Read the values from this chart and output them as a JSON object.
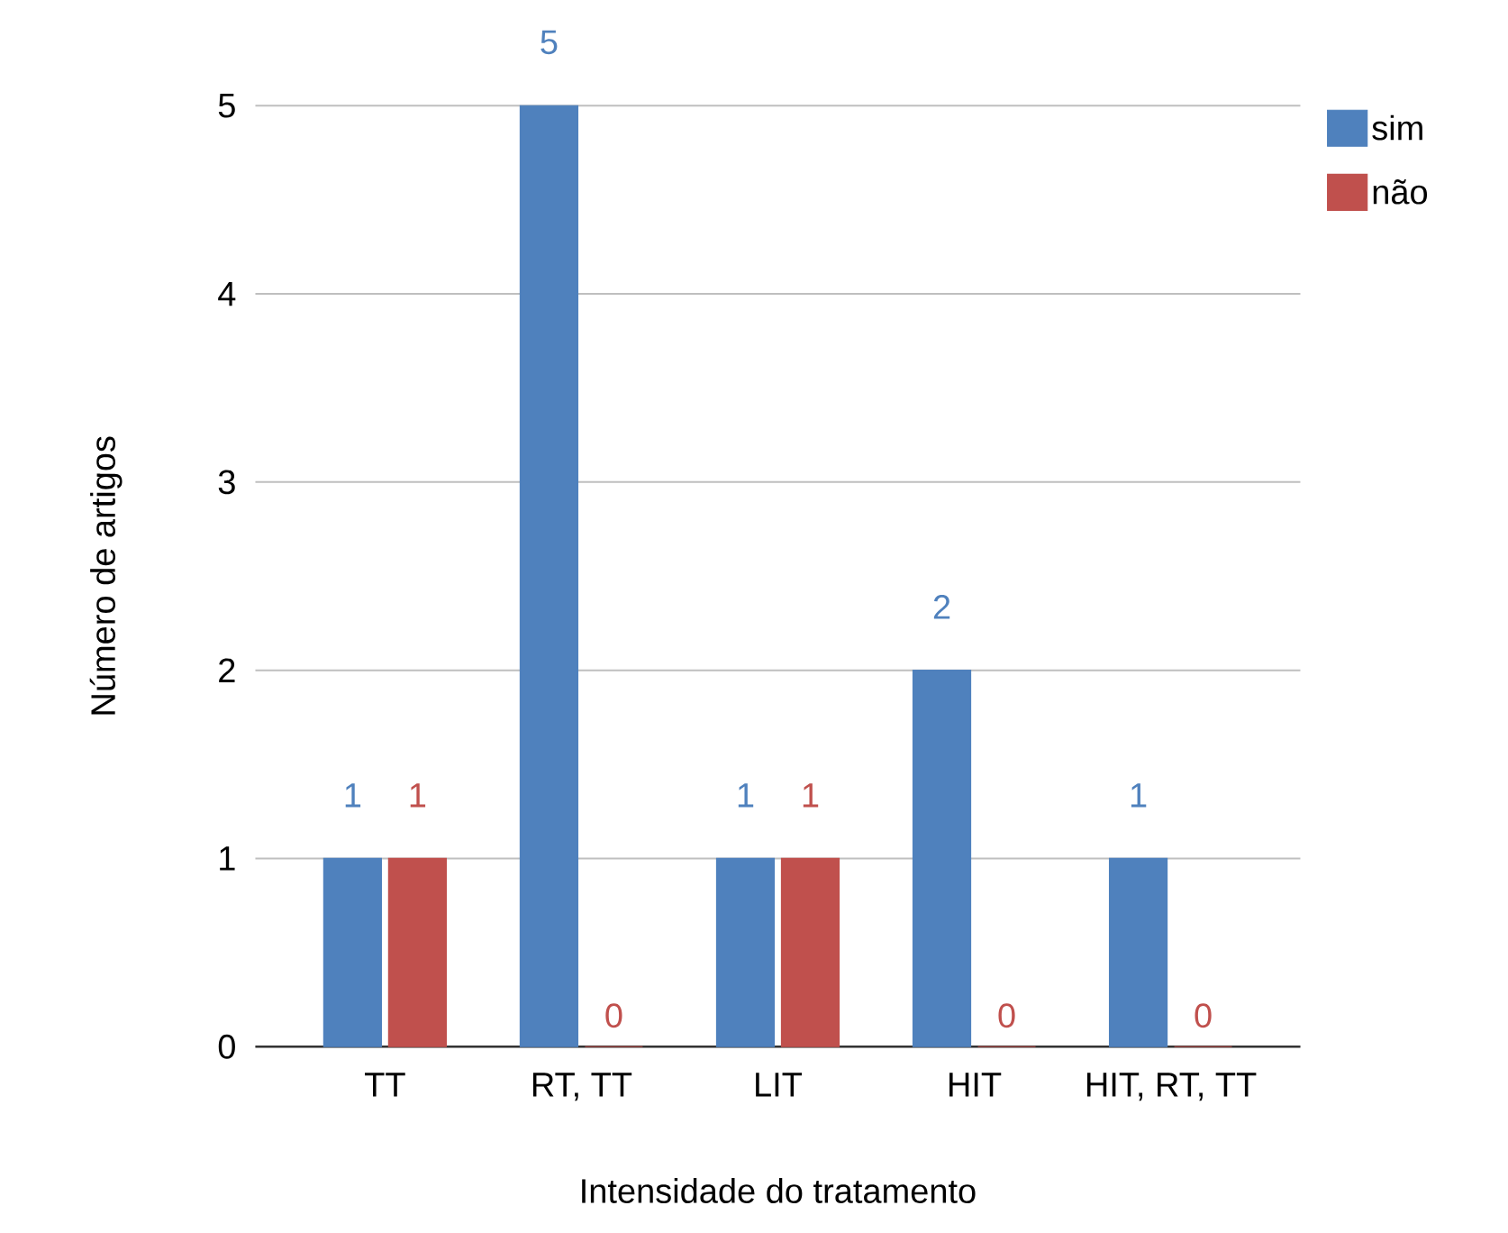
{
  "chart_data": {
    "type": "bar",
    "xlabel": "Intensidade do tratamento",
    "ylabel": "Número de artigos",
    "categories": [
      "TT",
      "RT, TT",
      "LIT",
      "HIT",
      "HIT, RT, TT"
    ],
    "series": [
      {
        "name": "sim",
        "color": "#4f81bd",
        "values": [
          1,
          5,
          1,
          2,
          1
        ]
      },
      {
        "name": "não",
        "color": "#c0504d",
        "values": [
          1,
          0,
          1,
          0,
          0
        ]
      }
    ],
    "ylim": [
      0,
      5
    ],
    "yticks": [
      0,
      1,
      2,
      3,
      4,
      5
    ],
    "grid": "y",
    "legend": "top right",
    "data_labels": true
  }
}
